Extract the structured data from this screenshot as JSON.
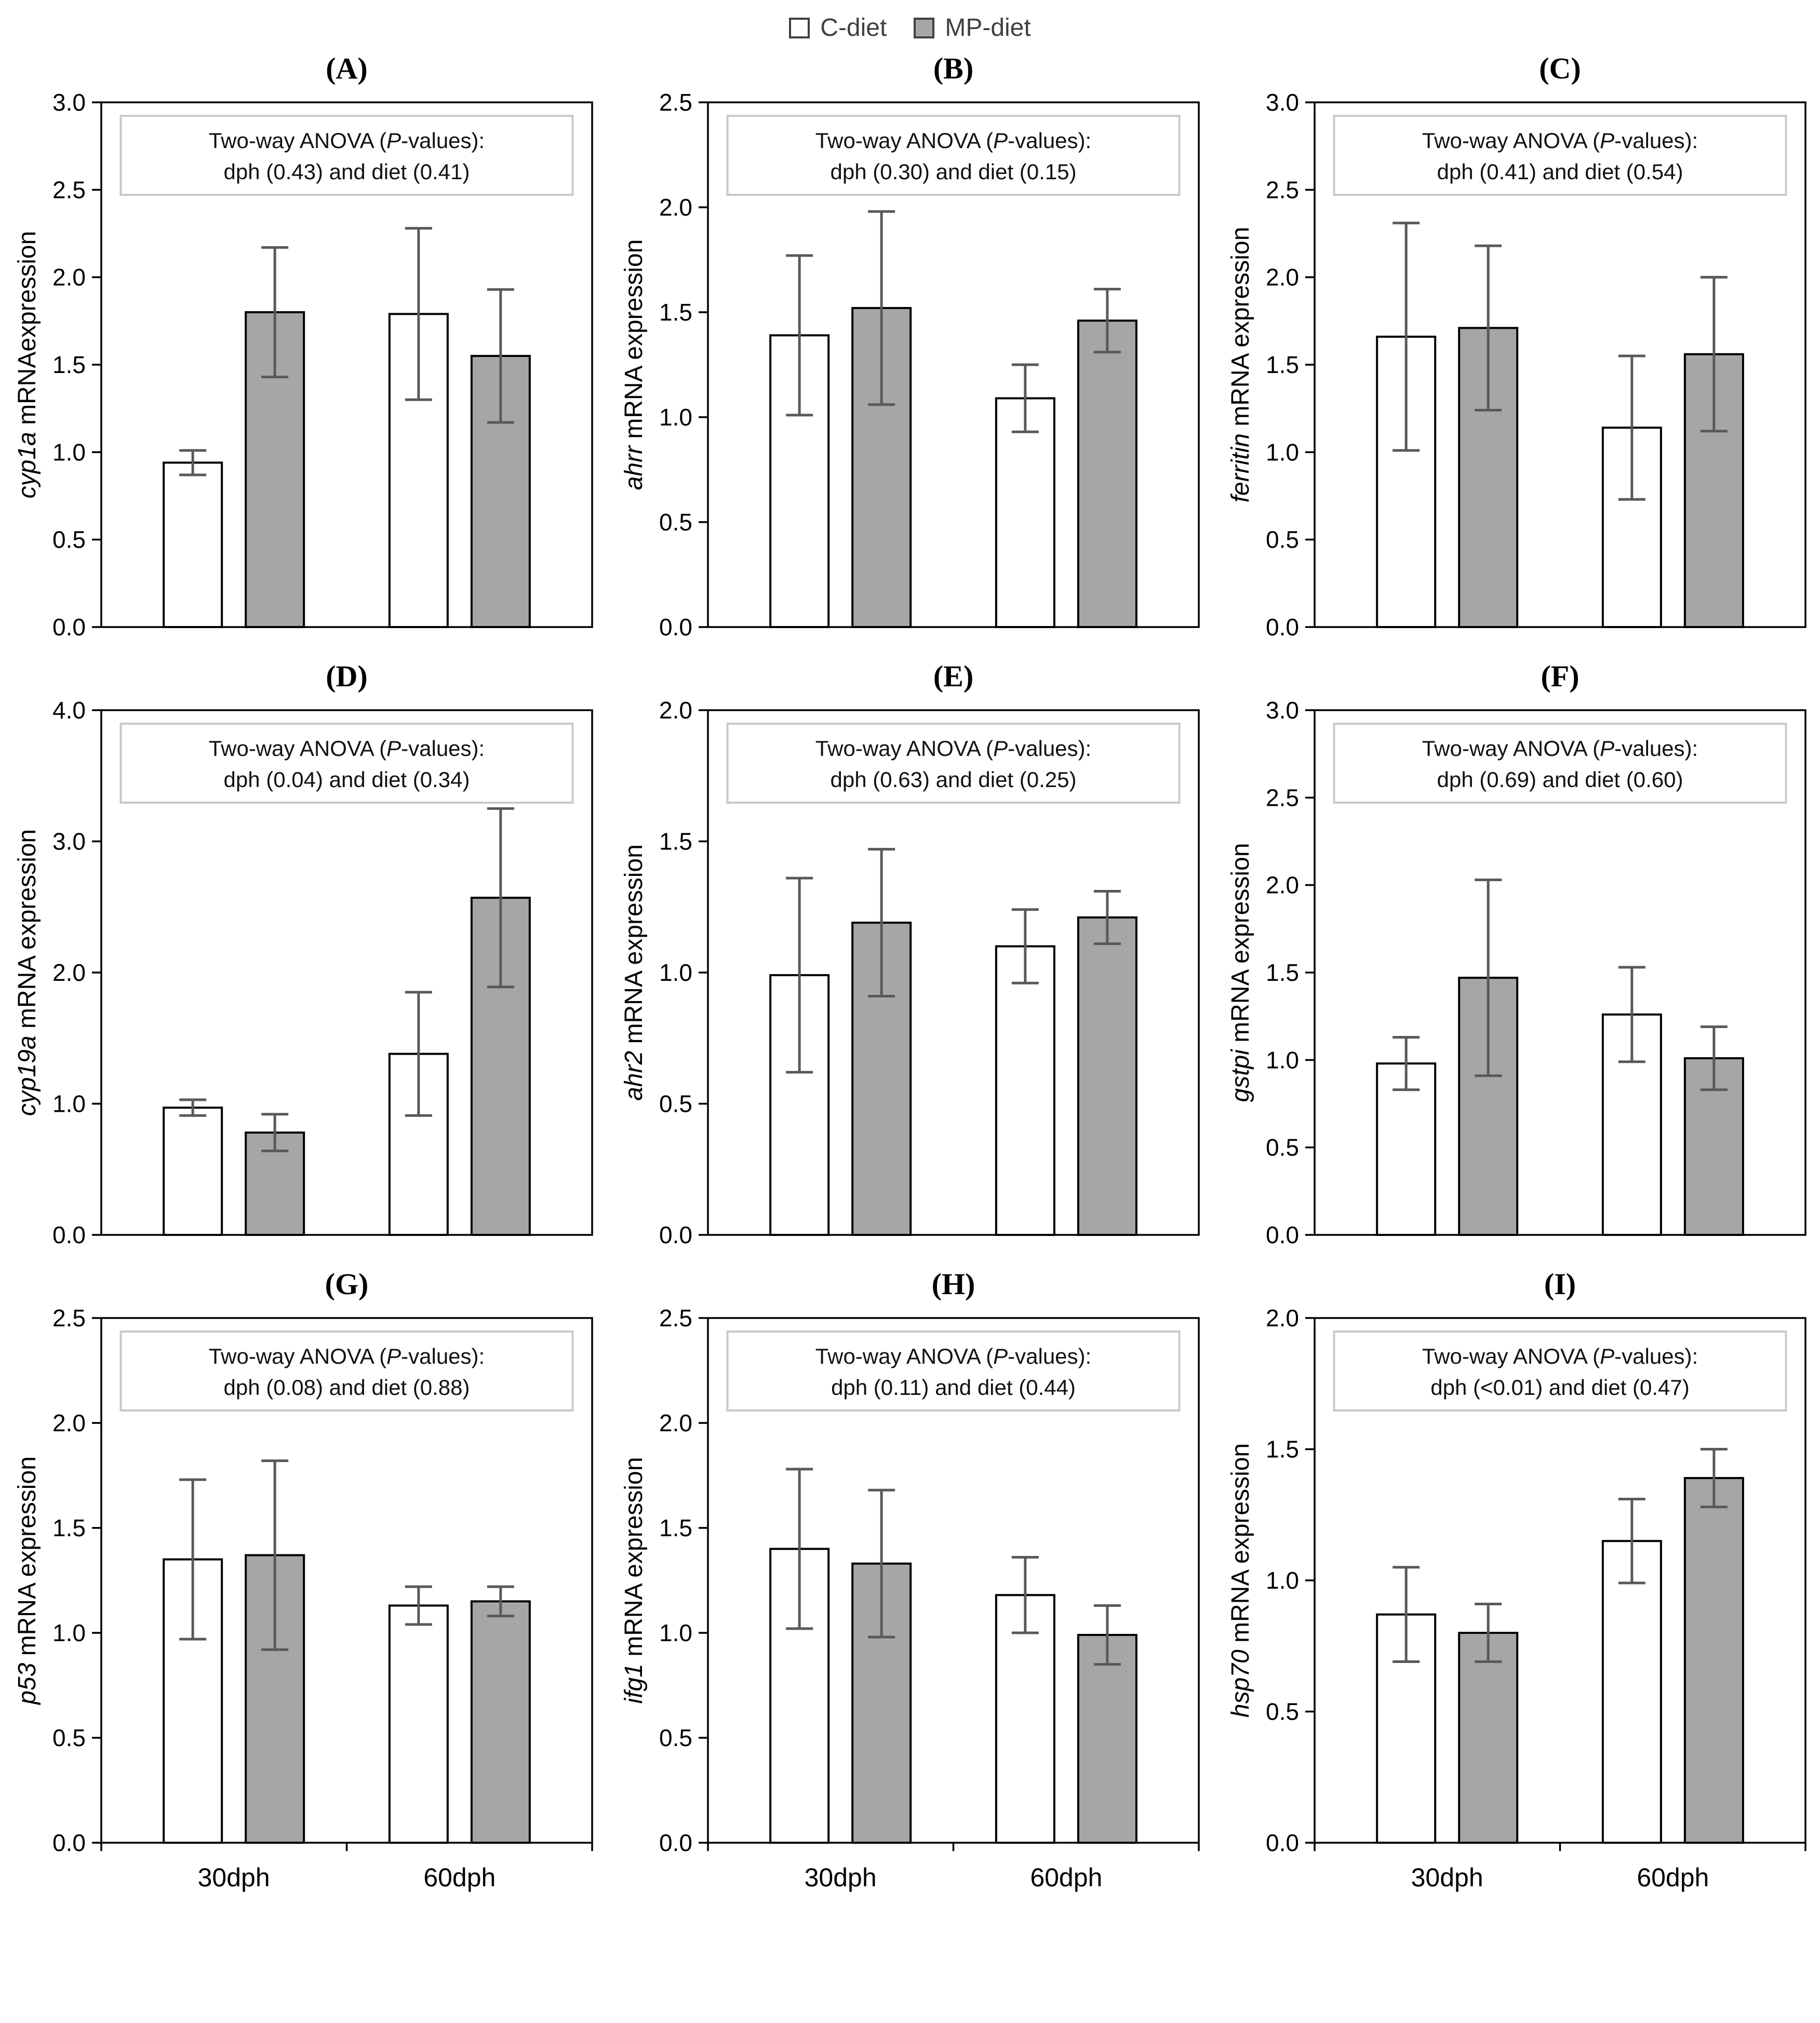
{
  "legend": {
    "items": [
      {
        "label": "C-diet",
        "fill": "#ffffff"
      },
      {
        "label": "MP-diet",
        "fill": "#a6a6a6"
      }
    ]
  },
  "colors": {
    "c_fill": "#ffffff",
    "mp_fill": "#a6a6a6",
    "bar_border": "#000000",
    "error_bar": "#595959",
    "axis": "#000000",
    "annotation_border": "#c9c9c9",
    "legend_text": "#404040"
  },
  "x_categories": [
    "30dph",
    "60dph"
  ],
  "anova_heading": {
    "prefix": "Two-way ANOVA (",
    "italic": "P",
    "suffix": "-values):"
  },
  "chart_data": [
    {
      "type": "bar",
      "panel": "(A)",
      "gene": "cyp1a",
      "ylabel_suffix": " mRNAexpression",
      "anova_pvalues": "dph (0.43) and diet (0.41)",
      "ymax": 3.0,
      "ystep": 0.5,
      "categories": [
        "30dph",
        "60dph"
      ],
      "series": [
        {
          "name": "C-diet",
          "values": [
            0.94,
            1.79
          ],
          "errors": [
            0.07,
            0.49
          ]
        },
        {
          "name": "MP-diet",
          "values": [
            1.8,
            1.55
          ],
          "errors": [
            0.37,
            0.38
          ]
        }
      ],
      "show_xlabels": false
    },
    {
      "type": "bar",
      "panel": "(B)",
      "gene": "ahrr",
      "ylabel_suffix": " mRNA expression",
      "anova_pvalues": "dph (0.30) and diet (0.15)",
      "ymax": 2.5,
      "ystep": 0.5,
      "categories": [
        "30dph",
        "60dph"
      ],
      "series": [
        {
          "name": "C-diet",
          "values": [
            1.39,
            1.09
          ],
          "errors": [
            0.38,
            0.16
          ]
        },
        {
          "name": "MP-diet",
          "values": [
            1.52,
            1.46
          ],
          "errors": [
            0.46,
            0.15
          ]
        }
      ],
      "show_xlabels": false
    },
    {
      "type": "bar",
      "panel": "(C)",
      "gene": "ferritin",
      "ylabel_suffix": " mRNA expression",
      "anova_pvalues": "dph (0.41) and diet (0.54)",
      "ymax": 3.0,
      "ystep": 0.5,
      "categories": [
        "30dph",
        "60dph"
      ],
      "series": [
        {
          "name": "C-diet",
          "values": [
            1.66,
            1.14
          ],
          "errors": [
            0.65,
            0.41
          ]
        },
        {
          "name": "MP-diet",
          "values": [
            1.71,
            1.56
          ],
          "errors": [
            0.47,
            0.44
          ]
        }
      ],
      "show_xlabels": false
    },
    {
      "type": "bar",
      "panel": "(D)",
      "gene": "cyp19a",
      "ylabel_suffix": " mRNA expression",
      "anova_pvalues": "dph (0.04) and diet (0.34)",
      "ymax": 4.0,
      "ystep": 1.0,
      "categories": [
        "30dph",
        "60dph"
      ],
      "series": [
        {
          "name": "C-diet",
          "values": [
            0.97,
            1.38
          ],
          "errors": [
            0.06,
            0.47
          ]
        },
        {
          "name": "MP-diet",
          "values": [
            0.78,
            2.57
          ],
          "errors": [
            0.14,
            0.68
          ]
        }
      ],
      "show_xlabels": false
    },
    {
      "type": "bar",
      "panel": "(E)",
      "gene": "ahr2",
      "ylabel_suffix": " mRNA expression",
      "anova_pvalues": "dph (0.63) and diet (0.25)",
      "ymax": 2.0,
      "ystep": 0.5,
      "categories": [
        "30dph",
        "60dph"
      ],
      "series": [
        {
          "name": "C-diet",
          "values": [
            0.99,
            1.1
          ],
          "errors": [
            0.37,
            0.14
          ]
        },
        {
          "name": "MP-diet",
          "values": [
            1.19,
            1.21
          ],
          "errors": [
            0.28,
            0.1
          ]
        }
      ],
      "show_xlabels": false
    },
    {
      "type": "bar",
      "panel": "(F)",
      "gene": "gstpi",
      "ylabel_suffix": " mRNA expression",
      "anova_pvalues": "dph (0.69) and diet (0.60)",
      "ymax": 3.0,
      "ystep": 0.5,
      "categories": [
        "30dph",
        "60dph"
      ],
      "series": [
        {
          "name": "C-diet",
          "values": [
            0.98,
            1.26
          ],
          "errors": [
            0.15,
            0.27
          ]
        },
        {
          "name": "MP-diet",
          "values": [
            1.47,
            1.01
          ],
          "errors": [
            0.56,
            0.18
          ]
        }
      ],
      "show_xlabels": false
    },
    {
      "type": "bar",
      "panel": "(G)",
      "gene": "p53",
      "ylabel_suffix": " mRNA expression",
      "anova_pvalues": "dph (0.08) and diet (0.88)",
      "ymax": 2.5,
      "ystep": 0.5,
      "categories": [
        "30dph",
        "60dph"
      ],
      "series": [
        {
          "name": "C-diet",
          "values": [
            1.35,
            1.13
          ],
          "errors": [
            0.38,
            0.09
          ]
        },
        {
          "name": "MP-diet",
          "values": [
            1.37,
            1.15
          ],
          "errors": [
            0.45,
            0.07
          ]
        }
      ],
      "show_xlabels": true
    },
    {
      "type": "bar",
      "panel": "(H)",
      "gene": "ifg1",
      "ylabel_suffix": " mRNA expression",
      "anova_pvalues": "dph (0.11) and diet (0.44)",
      "ymax": 2.5,
      "ystep": 0.5,
      "categories": [
        "30dph",
        "60dph"
      ],
      "series": [
        {
          "name": "C-diet",
          "values": [
            1.4,
            1.18
          ],
          "errors": [
            0.38,
            0.18
          ]
        },
        {
          "name": "MP-diet",
          "values": [
            1.33,
            0.99
          ],
          "errors": [
            0.35,
            0.14
          ]
        }
      ],
      "show_xlabels": true
    },
    {
      "type": "bar",
      "panel": "(I)",
      "gene": "hsp70",
      "ylabel_suffix": " mRNA expression",
      "anova_pvalues": "dph (<0.01) and diet (0.47)",
      "ymax": 2.0,
      "ystep": 0.5,
      "categories": [
        "30dph",
        "60dph"
      ],
      "series": [
        {
          "name": "C-diet",
          "values": [
            0.87,
            1.15
          ],
          "errors": [
            0.18,
            0.16
          ]
        },
        {
          "name": "MP-diet",
          "values": [
            0.8,
            1.39
          ],
          "errors": [
            0.11,
            0.11
          ]
        }
      ],
      "show_xlabels": true
    }
  ]
}
